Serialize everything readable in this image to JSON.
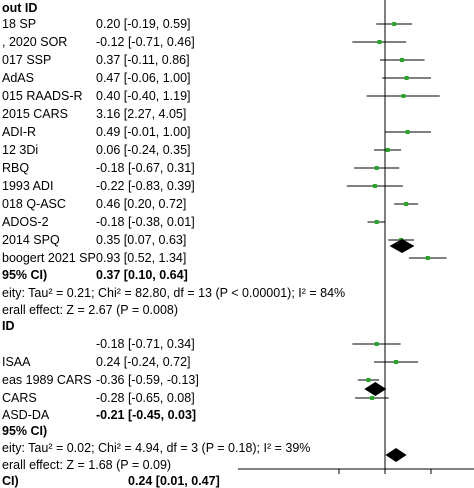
{
  "chart_data": {
    "type": "forest",
    "title": "",
    "xlabel": "",
    "ylabel": "",
    "xlim": [
      -1.3,
      1.3
    ],
    "subgroups": [
      {
        "heading": "out ID",
        "studies": [
          {
            "label": "18 SP",
            "ci_text": "0.20 [-0.19, 0.59]",
            "est": 0.2,
            "lo": -0.19,
            "hi": 0.59
          },
          {
            "label": ", 2020 SOR",
            "ci_text": "-0.12 [-0.71, 0.46]",
            "est": -0.12,
            "lo": -0.71,
            "hi": 0.46
          },
          {
            "label": "017 SSP",
            "ci_text": "0.37 [-0.11, 0.86]",
            "est": 0.37,
            "lo": -0.11,
            "hi": 0.86
          },
          {
            "label": "AdAS",
            "ci_text": "0.47 [-0.06, 1.00]",
            "est": 0.47,
            "lo": -0.06,
            "hi": 1.0
          },
          {
            "label": "015 RAADS-R",
            "ci_text": "0.40 [-0.40, 1.19]",
            "est": 0.4,
            "lo": -0.4,
            "hi": 1.19
          },
          {
            "label": "2015 CARS",
            "ci_text": "3.16 [2.27, 4.05]",
            "est": 3.16,
            "lo": 2.27,
            "hi": 4.05
          },
          {
            "label": "ADI-R",
            "ci_text": "0.49 [-0.01, 1.00]",
            "est": 0.49,
            "lo": -0.01,
            "hi": 1.0
          },
          {
            "label": "12 3Di",
            "ci_text": "0.06 [-0.24, 0.35]",
            "est": 0.06,
            "lo": -0.24,
            "hi": 0.35
          },
          {
            "label": "RBQ",
            "ci_text": "-0.18 [-0.67, 0.31]",
            "est": -0.18,
            "lo": -0.67,
            "hi": 0.31
          },
          {
            "label": "1993 ADI",
            "ci_text": "-0.22 [-0.83, 0.39]",
            "est": -0.22,
            "lo": -0.83,
            "hi": 0.39
          },
          {
            "label": "018 Q-ASC",
            "ci_text": "0.46 [0.20, 0.72]",
            "est": 0.46,
            "lo": 0.2,
            "hi": 0.72
          },
          {
            "label": "ADOS-2",
            "ci_text": "-0.18 [-0.38, 0.01]",
            "est": -0.18,
            "lo": -0.38,
            "hi": 0.01
          },
          {
            "label": "2014 SPQ",
            "ci_text": "0.35 [0.07, 0.63]",
            "est": 0.35,
            "lo": 0.07,
            "hi": 0.63
          },
          {
            "label": "boogert 2021 SP",
            "ci_text": "0.93 [0.52, 1.34]",
            "est": 0.93,
            "lo": 0.52,
            "hi": 1.34
          }
        ],
        "total": {
          "label": "95% CI)",
          "ci_text": "0.37 [0.10, 0.64]",
          "est": 0.37,
          "lo": 0.1,
          "hi": 0.64
        },
        "heterogeneity": "eity: Tau² = 0.21; Chi² = 82.80, df = 13 (P < 0.00001); I² = 84%",
        "overall_effect": "erall effect: Z = 2.67 (P = 0.008)"
      },
      {
        "heading": "ID",
        "studies": [
          {
            "label": "",
            "ci_text": "-0.18 [-0.71, 0.34]",
            "est": -0.18,
            "lo": -0.71,
            "hi": 0.34
          },
          {
            "label": "ISAA",
            "ci_text": "0.24 [-0.24, 0.72]",
            "est": 0.24,
            "lo": -0.24,
            "hi": 0.72
          },
          {
            "label": "eas 1989 CARS",
            "ci_text": "-0.36 [-0.59, -0.13]",
            "est": -0.36,
            "lo": -0.59,
            "hi": -0.13
          },
          {
            "label": "CARS",
            "ci_text": "-0.28 [-0.65, 0.08]",
            "est": -0.28,
            "lo": -0.65,
            "hi": 0.08
          },
          {
            "label": "ASD-DA",
            "ci_text": "-0.21 [-0.45, 0.03]",
            "est": -0.21,
            "lo": -0.45,
            "hi": 0.03,
            "bold": true
          }
        ],
        "total": {
          "label": "95% CI)",
          "ci_text": "",
          "est": -0.21,
          "lo": -0.45,
          "hi": 0.03
        },
        "heterogeneity": "eity: Tau² = 0.02; Chi² = 4.94, df = 3 (P = 0.18); I² = 39%",
        "overall_effect": "erall effect: Z = 1.68 (P = 0.09)"
      }
    ],
    "overall": {
      "label": "CI)",
      "ci_text": "0.24 [0.01, 0.47]",
      "est": 0.24,
      "lo": 0.01,
      "hi": 0.47
    }
  },
  "colors": {
    "point": "#22aa22",
    "line": "#000000"
  }
}
